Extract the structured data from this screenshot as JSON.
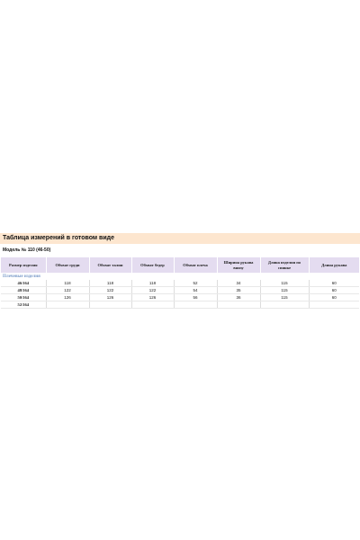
{
  "title": "Таблица измерений в готовом виде",
  "model_line": "Модель № 110 (46-50)",
  "table": {
    "headers": [
      "Размер изделия",
      "Обхват груди",
      "Обхват талии",
      "Обхват бедер",
      "Обхват плеча",
      "Ширина рукава внизу",
      "Длина изделия по спинке",
      "Длина рукава"
    ],
    "section_label": "Плечевые изделия",
    "rows": [
      [
        "46/164",
        "118",
        "118",
        "118",
        "52",
        "34",
        "115",
        "60"
      ],
      [
        "48/164",
        "122",
        "122",
        "122",
        "54",
        "35",
        "115",
        "60"
      ],
      [
        "50/164",
        "126",
        "126",
        "126",
        "56",
        "36",
        "115",
        "60"
      ],
      [
        "52/164",
        "",
        "",
        "",
        "",
        "",
        "",
        ""
      ]
    ]
  }
}
